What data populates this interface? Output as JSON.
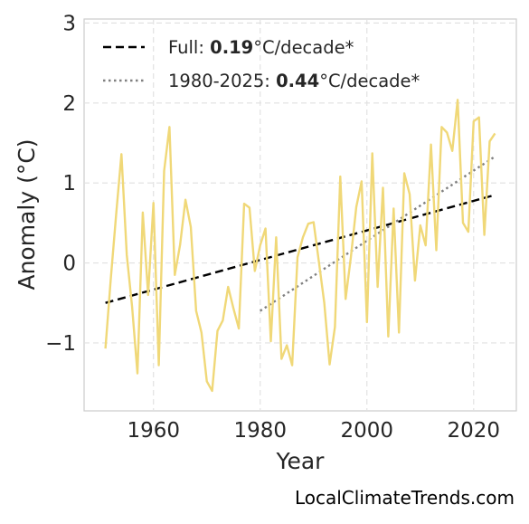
{
  "chart_data": {
    "type": "line",
    "title": "",
    "xlabel": "Year",
    "ylabel": "Anomaly (°C)",
    "xlim": [
      1947,
      2028
    ],
    "ylim": [
      -1.85,
      3.05
    ],
    "xticks": [
      1960,
      1980,
      2000,
      2020
    ],
    "yticks": [
      -1,
      0,
      1,
      2,
      3
    ],
    "ytick_labels": [
      "−1",
      "0",
      "1",
      "2",
      "3"
    ],
    "grid": true,
    "legend_position": "top-left",
    "colors": {
      "series": "#f0d878",
      "full_trend": "#000000",
      "recent_trend": "#808080"
    },
    "series": [
      {
        "x": [
          1951,
          1952,
          1953,
          1954,
          1955,
          1956,
          1957,
          1958,
          1959,
          1960,
          1961,
          1962,
          1963,
          1964,
          1965,
          1966,
          1967,
          1968,
          1969,
          1970,
          1971,
          1972,
          1973,
          1974,
          1975,
          1976,
          1977,
          1978,
          1979,
          1980,
          1981,
          1982,
          1983,
          1984,
          1985,
          1986,
          1987,
          1988,
          1989,
          1990,
          1991,
          1992,
          1993,
          1994,
          1995,
          1996,
          1997,
          1998,
          1999,
          2000,
          2001,
          2002,
          2003,
          2004,
          2005,
          2006,
          2007,
          2008,
          2009,
          2010,
          2011,
          2012,
          2013,
          2014,
          2015,
          2016,
          2017,
          2018,
          2019,
          2020,
          2021,
          2022,
          2023,
          2024
        ],
        "values": [
          -1.07,
          -0.2,
          0.6,
          1.36,
          0.1,
          -0.55,
          -1.38,
          0.63,
          -0.4,
          0.75,
          -1.28,
          1.15,
          1.7,
          -0.15,
          0.23,
          0.79,
          0.45,
          -0.6,
          -0.87,
          -1.48,
          -1.6,
          -0.85,
          -0.72,
          -0.3,
          -0.57,
          -0.82,
          0.74,
          0.69,
          -0.1,
          0.22,
          0.43,
          -0.98,
          0.32,
          -1.2,
          -1.03,
          -1.28,
          0.07,
          0.32,
          0.49,
          0.51,
          0.01,
          -0.5,
          -1.27,
          -0.8,
          1.08,
          -0.45,
          0.08,
          0.7,
          1.02,
          -0.74,
          1.37,
          -0.3,
          0.94,
          -0.92,
          0.68,
          -0.87,
          1.12,
          0.86,
          -0.22,
          0.47,
          0.22,
          1.48,
          0.16,
          1.7,
          1.63,
          1.4,
          2.04,
          0.5,
          0.39,
          1.77,
          1.82,
          0.35,
          1.52,
          1.62
        ]
      }
    ],
    "trend_lines": [
      {
        "label": "Full: ",
        "value_text": "0.19",
        "unit_text": "°C/decade*",
        "x": [
          1951,
          2024
        ],
        "y": [
          -0.5,
          0.85
        ]
      },
      {
        "label": "1980-2025: ",
        "value_text": "0.44",
        "unit_text": "°C/decade*",
        "x": [
          1980,
          2024
        ],
        "y": [
          -0.6,
          1.33
        ]
      }
    ]
  },
  "credit": "LocalClimateTrends.com"
}
